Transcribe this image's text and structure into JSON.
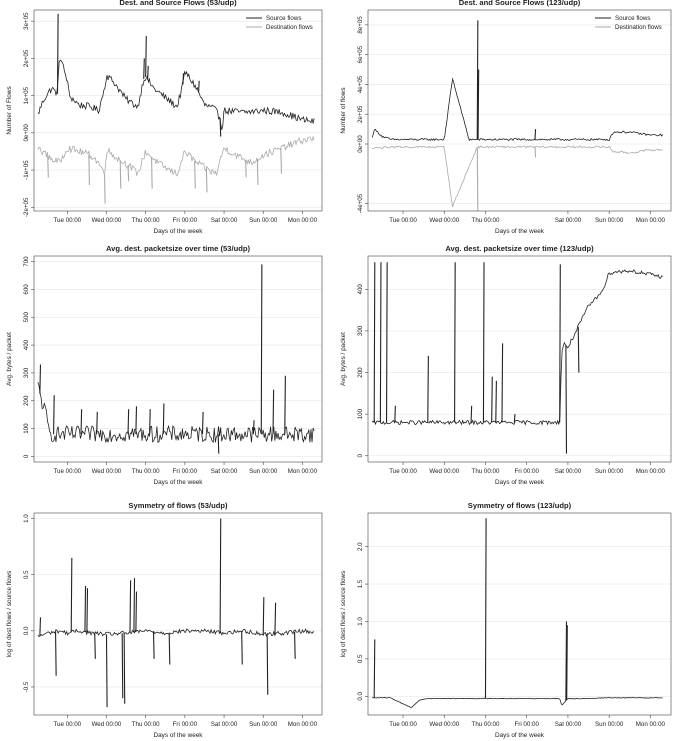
{
  "chart_data": [
    {
      "type": "line",
      "title": "Dest. and Source Flows (53/udp)",
      "xlabel": "Days of the week",
      "ylabel": "Number of Flows",
      "x_tick_labels": [
        "Tue 00:00",
        "Wed 00:00",
        "Thu 00:00",
        "Fri 00:00",
        "Sat 00:00",
        "Sun 00:00",
        "Mon 00:00"
      ],
      "y_tick_labels": [
        "-2e+05",
        "-1e+05",
        "0e+00",
        "1e+05",
        "2e+05",
        "3e+05"
      ],
      "y_ticks": [
        -200000,
        -100000,
        0,
        100000,
        200000,
        300000
      ],
      "xlim": [
        -0.85,
        6.5
      ],
      "ylim": [
        -210000,
        330000
      ],
      "grid": true,
      "legend": "top-right",
      "series": [
        {
          "name": "Source flows",
          "color": "#222222",
          "x": [
            -0.75,
            -0.6,
            -0.4,
            -0.25,
            -0.2,
            0.0,
            0.05,
            0.3,
            0.6,
            0.8,
            0.95,
            1.0,
            1.2,
            1.5,
            1.8,
            1.95,
            2.0,
            2.2,
            2.5,
            2.8,
            2.95,
            3.0,
            3.3,
            3.5,
            3.75,
            3.9,
            3.95,
            4.0,
            4.5,
            5.0,
            5.5,
            6.0,
            6.3
          ],
          "y": [
            50000,
            90000,
            120000,
            105000,
            210000,
            140000,
            100000,
            75000,
            70000,
            60000,
            120000,
            155000,
            135000,
            90000,
            70000,
            145000,
            150000,
            120000,
            95000,
            70000,
            130000,
            165000,
            120000,
            75000,
            65000,
            40000,
            10000,
            60000,
            55000,
            60000,
            55000,
            35000,
            30000
          ]
        },
        {
          "name": "Destination flows",
          "color": "#aaaaaa",
          "x": [
            -0.75,
            -0.4,
            -0.2,
            0.0,
            0.3,
            0.6,
            0.8,
            0.95,
            1.0,
            1.3,
            1.6,
            1.8,
            2.0,
            2.3,
            2.6,
            2.8,
            3.0,
            3.3,
            3.6,
            3.8,
            4.0,
            4.3,
            4.7,
            5.0,
            5.5,
            6.0,
            6.3
          ],
          "y": [
            -40000,
            -70000,
            -80000,
            -40000,
            -50000,
            -60000,
            -80000,
            -110000,
            -45000,
            -70000,
            -90000,
            -110000,
            -50000,
            -80000,
            -100000,
            -110000,
            -50000,
            -80000,
            -100000,
            -110000,
            -40000,
            -60000,
            -80000,
            -60000,
            -40000,
            -20000,
            -15000
          ]
        }
      ]
    },
    {
      "type": "line",
      "title": "Dest. and Source Flows (123/udp)",
      "xlabel": "Days of the week",
      "ylabel": "Number of flows",
      "x_tick_labels": [
        "Tue 00:00",
        "Wed 00:00",
        "Thu 00:00",
        "Sat 00:00",
        "Sun 00:00",
        "Mon 00:00"
      ],
      "x_ticks": [
        0,
        1,
        2,
        4,
        5,
        6
      ],
      "y_tick_labels": [
        "-4e+05",
        "0e+00",
        "2e+05",
        "4e+05",
        "6e+05",
        "8e+05"
      ],
      "y_ticks": [
        -400000,
        0,
        200000,
        400000,
        600000,
        800000
      ],
      "xlim": [
        -0.85,
        6.5
      ],
      "ylim": [
        -450000,
        900000
      ],
      "grid": true,
      "legend": "top-right",
      "series": [
        {
          "name": "Source flows",
          "color": "#222222",
          "x": [
            -0.75,
            -0.7,
            -0.5,
            -0.3,
            1.0,
            1.2,
            1.6,
            1.8,
            2.0,
            2.5,
            3.0,
            3.5,
            4.0,
            4.5,
            5.0,
            5.1,
            5.5,
            6.0,
            6.3
          ],
          "y": [
            40000,
            100000,
            50000,
            30000,
            30000,
            440000,
            30000,
            30000,
            30000,
            30000,
            30000,
            30000,
            30000,
            30000,
            30000,
            80000,
            80000,
            60000,
            60000
          ]
        },
        {
          "name": "Destination flows",
          "color": "#aaaaaa",
          "x": [
            -0.75,
            -0.3,
            1.0,
            1.2,
            1.8,
            2.0,
            2.5,
            3.0,
            4.0,
            5.0,
            5.1,
            5.5,
            6.0,
            6.3
          ],
          "y": [
            -30000,
            -20000,
            -20000,
            -420000,
            -20000,
            -20000,
            -20000,
            -20000,
            -20000,
            -20000,
            -50000,
            -60000,
            -40000,
            -40000
          ]
        }
      ]
    },
    {
      "type": "line",
      "title": "Avg. dest. packetsize over time (53/udp)",
      "xlabel": "Days of the week",
      "ylabel": "Avg. bytes / packet",
      "x_tick_labels": [
        "Tue 00:00",
        "Wed 00:00",
        "Thu 00:00",
        "Fri 00:00",
        "Sat 00:00",
        "Sun 00:00",
        "Mon 00:00"
      ],
      "y_tick_labels": [
        "0",
        "100",
        "200",
        "300",
        "400",
        "500",
        "600",
        "700"
      ],
      "y_ticks": [
        0,
        100,
        200,
        300,
        400,
        500,
        600,
        700
      ],
      "xlim": [
        -0.85,
        6.5
      ],
      "ylim": [
        -20,
        720
      ],
      "grid": true,
      "series": [
        {
          "name": "",
          "color": "#222222",
          "x": [
            -0.75,
            -0.65,
            -0.55,
            -0.45,
            0.0,
            0.5,
            1.0,
            1.5,
            2.0,
            2.5,
            3.0,
            3.5,
            4.0,
            4.5,
            5.0,
            5.5,
            6.0,
            6.3
          ],
          "y": [
            250,
            200,
            150,
            80,
            80,
            80,
            80,
            80,
            80,
            80,
            80,
            80,
            80,
            80,
            80,
            80,
            80,
            80
          ]
        }
      ]
    },
    {
      "type": "line",
      "title": "Avg. dest. packetsize over time (123/udp)",
      "xlabel": "Days of the week",
      "ylabel": "Avg. bytes / packet",
      "x_tick_labels": [
        "Tue 00:00",
        "Wed 00:00",
        "Thu 00:00",
        "Fri 00:00",
        "Sat 00:00",
        "Sun 00:00",
        "Mon 00:00"
      ],
      "y_tick_labels": [
        "0",
        "100",
        "200",
        "300",
        "400"
      ],
      "y_ticks": [
        0,
        100,
        200,
        300,
        400
      ],
      "xlim": [
        -0.85,
        6.5
      ],
      "ylim": [
        -15,
        480
      ],
      "grid": true,
      "series": [
        {
          "name": "",
          "color": "#222222",
          "x": [
            -0.75,
            0.0,
            0.5,
            1.0,
            1.5,
            2.0,
            2.5,
            3.0,
            3.5,
            3.8,
            3.85,
            3.9,
            4.0,
            4.1,
            4.2,
            4.3,
            4.4,
            4.5,
            4.6,
            4.7,
            4.8,
            4.9,
            5.0,
            5.5,
            6.0,
            6.3
          ],
          "y": [
            80,
            80,
            80,
            80,
            80,
            80,
            80,
            80,
            80,
            80,
            250,
            270,
            260,
            280,
            300,
            320,
            340,
            360,
            370,
            380,
            395,
            410,
            440,
            445,
            435,
            430
          ]
        }
      ]
    },
    {
      "type": "line",
      "title": "Symmetry of flows (53/udp)",
      "xlabel": "Days of the week",
      "ylabel": "log of dest flows / source flows",
      "x_tick_labels": [
        "Tue 00:00",
        "Wed 00:00",
        "Thu 00:00",
        "Fri 00:00",
        "Sat 00:00",
        "Sun 00:00",
        "Mon 00:00"
      ],
      "y_tick_labels": [
        "-0.5",
        "0.0",
        "0.5",
        "1.0"
      ],
      "y_ticks": [
        -0.5,
        0.0,
        0.5,
        1.0
      ],
      "xlim": [
        -0.85,
        6.5
      ],
      "ylim": [
        -0.75,
        1.05
      ],
      "grid": true,
      "series": [
        {
          "name": "",
          "color": "#222222",
          "x": [
            -0.75,
            -0.5,
            -0.2,
            0.0,
            0.3,
            0.6,
            1.0,
            1.5,
            2.0,
            2.5,
            3.0,
            3.5,
            4.0,
            4.5,
            5.0,
            5.5,
            6.0,
            6.3
          ],
          "y": [
            -0.05,
            -0.02,
            0.0,
            -0.02,
            0.0,
            -0.02,
            -0.03,
            -0.02,
            0.0,
            -0.02,
            0.0,
            0.0,
            -0.02,
            0.0,
            -0.03,
            -0.02,
            0.0,
            -0.01
          ]
        }
      ]
    },
    {
      "type": "line",
      "title": "Symmetry of flows (123/udp)",
      "xlabel": "Days of the week",
      "ylabel": "log of dest flows / source flows",
      "x_tick_labels": [
        "Tue 00:00",
        "Wed 00:00",
        "Thu 00:00",
        "Fri 00:00",
        "Sat 00:00",
        "Sun 00:00",
        "Mon 00:00"
      ],
      "y_tick_labels": [
        "0.0",
        "0.5",
        "1.0",
        "1.5",
        "2.0"
      ],
      "y_ticks": [
        0.0,
        0.5,
        1.0,
        1.5,
        2.0
      ],
      "xlim": [
        -0.85,
        6.5
      ],
      "ylim": [
        -0.25,
        2.45
      ],
      "grid": true,
      "series": [
        {
          "name": "",
          "color": "#222222",
          "x": [
            -0.75,
            -0.3,
            -0.2,
            0.0,
            0.2,
            0.4,
            0.6,
            1.0,
            1.5,
            2.0,
            2.5,
            3.0,
            3.5,
            3.8,
            3.85,
            4.0,
            4.5,
            5.0,
            5.5,
            6.0,
            6.3
          ],
          "y": [
            -0.02,
            -0.02,
            -0.05,
            -0.1,
            -0.15,
            -0.05,
            -0.03,
            -0.03,
            -0.03,
            -0.03,
            -0.03,
            -0.03,
            -0.03,
            -0.03,
            -0.12,
            -0.03,
            -0.03,
            -0.02,
            -0.02,
            -0.02,
            -0.02
          ]
        }
      ]
    }
  ]
}
